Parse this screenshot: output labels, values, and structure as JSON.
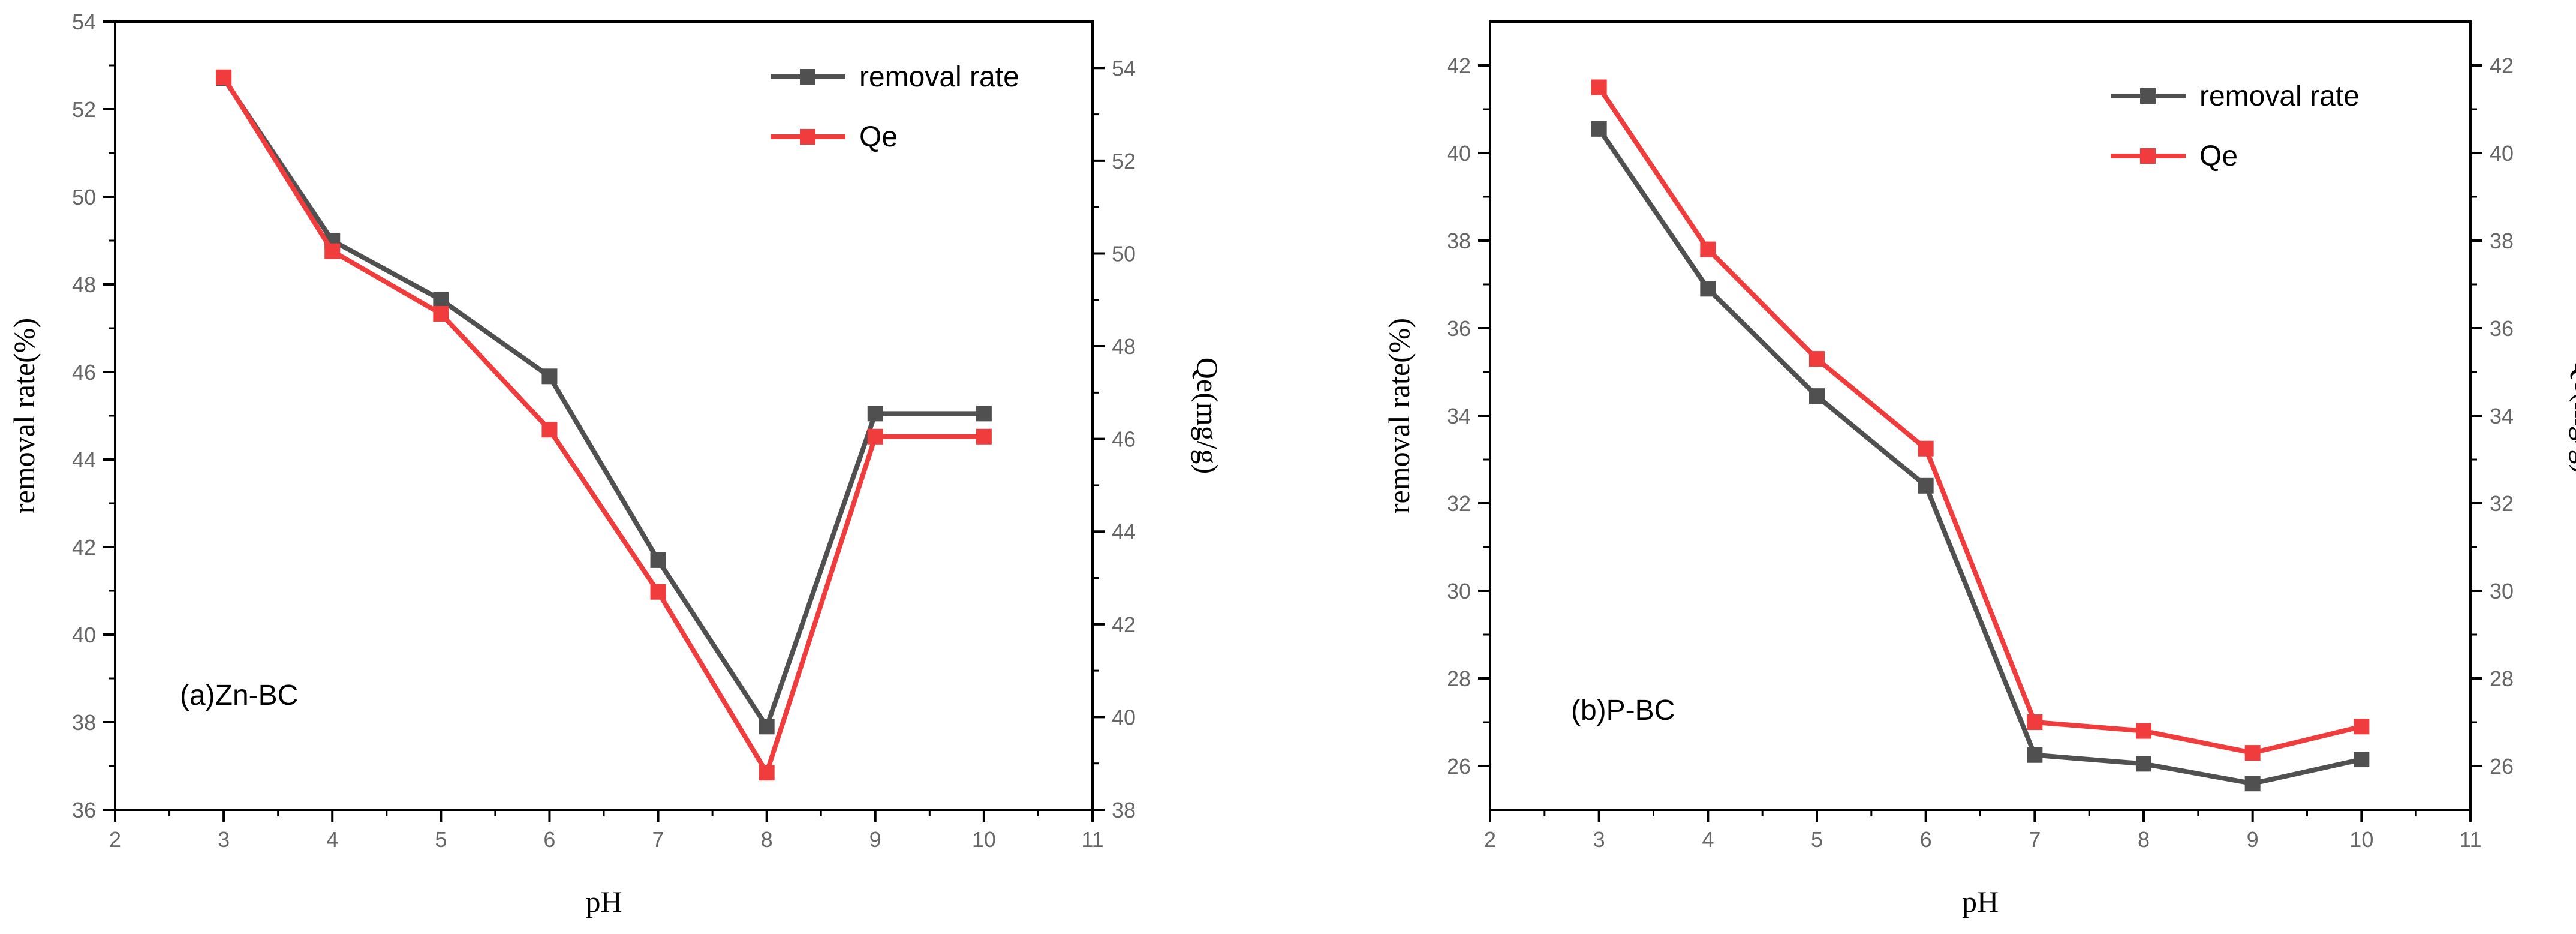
{
  "chart_data": [
    {
      "type": "line",
      "annotation": "(a)Zn-BC",
      "xlabel": "pH",
      "ylabel": "removal rate(%)",
      "y2label": "Qe(mg/g)",
      "xlim": [
        2,
        11
      ],
      "ylim": [
        36,
        54
      ],
      "y2lim": [
        38,
        55
      ],
      "xticks": [
        2,
        3,
        4,
        5,
        6,
        7,
        8,
        9,
        10,
        11
      ],
      "yticks": [
        36,
        38,
        40,
        42,
        44,
        46,
        48,
        50,
        52,
        54
      ],
      "y2ticks": [
        38,
        40,
        42,
        44,
        46,
        48,
        50,
        52,
        54
      ],
      "legend_position": "top-right",
      "x": [
        3,
        4,
        5,
        6,
        7,
        8,
        9,
        10
      ],
      "series": [
        {
          "name": "removal rate",
          "axis": "left",
          "color": "#505050",
          "values": [
            52.7,
            49.0,
            47.65,
            45.9,
            41.7,
            37.9,
            45.05,
            45.05
          ]
        },
        {
          "name": "Qe",
          "axis": "right",
          "color": "#f03c3c",
          "values": [
            53.8,
            50.05,
            48.7,
            46.2,
            42.7,
            38.8,
            46.05,
            46.05
          ]
        }
      ]
    },
    {
      "type": "line",
      "annotation": "(b)P-BC",
      "xlabel": "pH",
      "ylabel": "removal rate(%)",
      "y2label": "Qe(mg/g)",
      "xlim": [
        2,
        11
      ],
      "ylim": [
        25,
        43
      ],
      "y2lim": [
        25,
        43
      ],
      "xticks": [
        2,
        3,
        4,
        5,
        6,
        7,
        8,
        9,
        10,
        11
      ],
      "yticks": [
        26,
        28,
        30,
        32,
        34,
        36,
        38,
        40,
        42
      ],
      "y2ticks": [
        26,
        28,
        30,
        32,
        34,
        36,
        38,
        40,
        42
      ],
      "legend_position": "top-right",
      "x": [
        3,
        4,
        5,
        6,
        7,
        8,
        9,
        10
      ],
      "series": [
        {
          "name": "removal rate",
          "axis": "left",
          "color": "#505050",
          "values": [
            40.55,
            36.9,
            34.45,
            32.4,
            26.25,
            26.05,
            25.6,
            26.15
          ]
        },
        {
          "name": "Qe",
          "axis": "right",
          "color": "#f03c3c",
          "values": [
            41.5,
            37.8,
            35.3,
            33.25,
            27.0,
            26.8,
            26.3,
            26.9
          ]
        }
      ]
    }
  ]
}
